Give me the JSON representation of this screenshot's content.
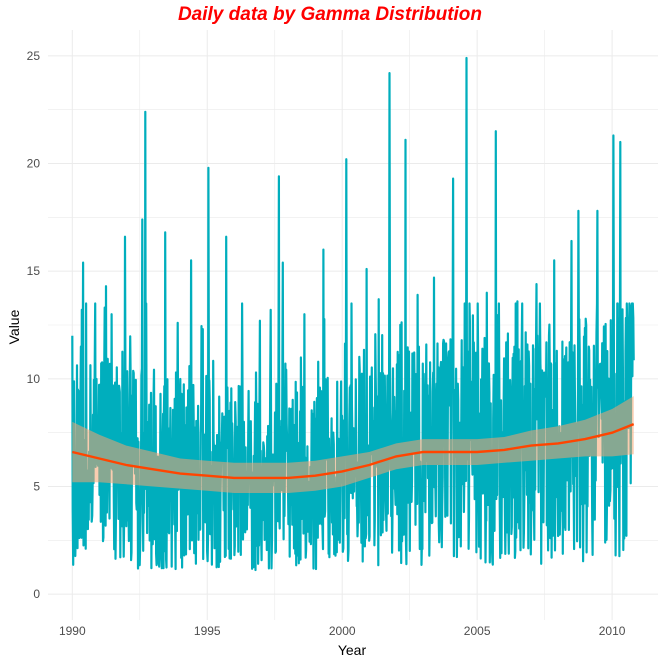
{
  "chart_data": {
    "type": "line",
    "title": "Daily data by Gamma Distribution",
    "xlabel": "Year",
    "ylabel": "Value",
    "xlim": [
      1989.1,
      2011.7
    ],
    "ylim": [
      -1.2,
      26.2
    ],
    "x_ticks": [
      1990,
      1995,
      2000,
      2005,
      2010
    ],
    "y_ticks": [
      0,
      5,
      10,
      15,
      20,
      25
    ],
    "grid": true,
    "legend": "none",
    "colors": {
      "title": "#ff0000",
      "series": "#00aebd",
      "trend": "#ff4500",
      "band": "#f4a46f",
      "grid": "#ebebeb"
    },
    "peaks": [
      [
        1990.0,
        12.0
      ],
      [
        1990.35,
        13.2
      ],
      [
        1990.4,
        15.4
      ],
      [
        1991.25,
        14.3
      ],
      [
        1991.45,
        13.0
      ],
      [
        1991.95,
        16.6
      ],
      [
        1992.6,
        17.4
      ],
      [
        1992.7,
        22.4
      ],
      [
        1993.45,
        16.8
      ],
      [
        1993.9,
        12.6
      ],
      [
        1994.4,
        15.5
      ],
      [
        1995.05,
        19.8
      ],
      [
        1995.7,
        16.6
      ],
      [
        1996.3,
        13.5
      ],
      [
        1996.95,
        12.7
      ],
      [
        1997.35,
        13.2
      ],
      [
        1997.65,
        19.4
      ],
      [
        1997.8,
        15.4
      ],
      [
        1998.6,
        13.0
      ],
      [
        1999.3,
        16.0
      ],
      [
        2000.15,
        20.2
      ],
      [
        2000.9,
        15.1
      ],
      [
        2001.35,
        13.7
      ],
      [
        2001.75,
        24.2
      ],
      [
        2002.35,
        21.1
      ],
      [
        2002.8,
        13.9
      ],
      [
        2003.4,
        14.7
      ],
      [
        2004.1,
        19.3
      ],
      [
        2004.6,
        24.9
      ],
      [
        2005.35,
        14.0
      ],
      [
        2005.7,
        21.5
      ],
      [
        2006.5,
        13.6
      ],
      [
        2007.2,
        14.4
      ],
      [
        2007.85,
        15.5
      ],
      [
        2008.5,
        16.4
      ],
      [
        2008.75,
        17.8
      ],
      [
        2009.45,
        17.8
      ],
      [
        2010.05,
        21.3
      ],
      [
        2010.3,
        21.0
      ],
      [
        2010.65,
        13.4
      ]
    ],
    "trend": {
      "x": [
        1990,
        1991,
        1992,
        1993,
        1994,
        1995,
        1996,
        1997,
        1998,
        1999,
        2000,
        2001,
        2002,
        2003,
        2004,
        2005,
        2006,
        2007,
        2008,
        2009,
        2010,
        2010.8
      ],
      "y": [
        6.6,
        6.3,
        6.0,
        5.8,
        5.6,
        5.5,
        5.4,
        5.4,
        5.4,
        5.5,
        5.7,
        6.0,
        6.4,
        6.6,
        6.6,
        6.6,
        6.7,
        6.9,
        7.0,
        7.2,
        7.5,
        7.9
      ],
      "lower": [
        5.2,
        5.2,
        5.1,
        5.0,
        4.9,
        4.8,
        4.7,
        4.7,
        4.7,
        4.8,
        5.0,
        5.4,
        5.8,
        6.0,
        6.0,
        6.0,
        6.1,
        6.2,
        6.3,
        6.4,
        6.4,
        6.5
      ],
      "upper": [
        8.0,
        7.4,
        6.9,
        6.6,
        6.3,
        6.2,
        6.1,
        6.1,
        6.1,
        6.2,
        6.4,
        6.6,
        7.0,
        7.2,
        7.2,
        7.2,
        7.3,
        7.6,
        7.8,
        8.1,
        8.6,
        9.2
      ]
    }
  }
}
